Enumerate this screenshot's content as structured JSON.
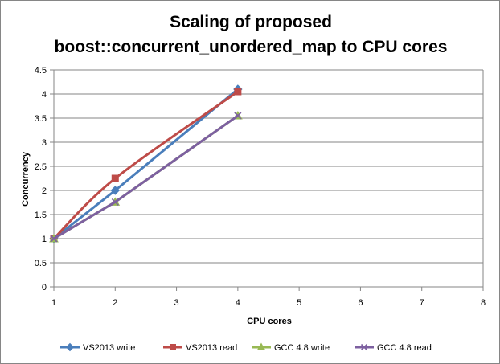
{
  "chart_data": {
    "type": "line",
    "title_lines": [
      "Scaling of proposed",
      "boost::concurrent_unordered_map to CPU cores"
    ],
    "xlabel": "CPU cores",
    "ylabel": "Concurrency",
    "xlim": [
      1,
      8
    ],
    "ylim": [
      0,
      4.5
    ],
    "x_ticks": [
      "1",
      "2",
      "3",
      "4",
      "5",
      "6",
      "7",
      "8"
    ],
    "y_ticks": [
      "0",
      "0.5",
      "1",
      "1.5",
      "2",
      "2.5",
      "3",
      "3.5",
      "4",
      "4.5"
    ],
    "grid": "horizontal",
    "legend_position": "bottom",
    "x": [
      1,
      2,
      4
    ],
    "series": [
      {
        "name": "VS2013 write",
        "values": [
          1,
          2.0,
          4.1
        ],
        "color": "#4A7EBB",
        "marker": "diamond",
        "smooth": false
      },
      {
        "name": "VS2013 read",
        "values": [
          1,
          2.25,
          4.05
        ],
        "color": "#BE4B48",
        "marker": "square",
        "smooth": true
      },
      {
        "name": "GCC 4.8 write",
        "values": [
          1,
          1.76,
          3.55
        ],
        "color": "#98B954",
        "marker": "triangle",
        "smooth": false
      },
      {
        "name": "GCC 4.8 read",
        "values": [
          1,
          1.76,
          3.55
        ],
        "color": "#7D60A0",
        "marker": "x",
        "smooth": false
      }
    ]
  }
}
